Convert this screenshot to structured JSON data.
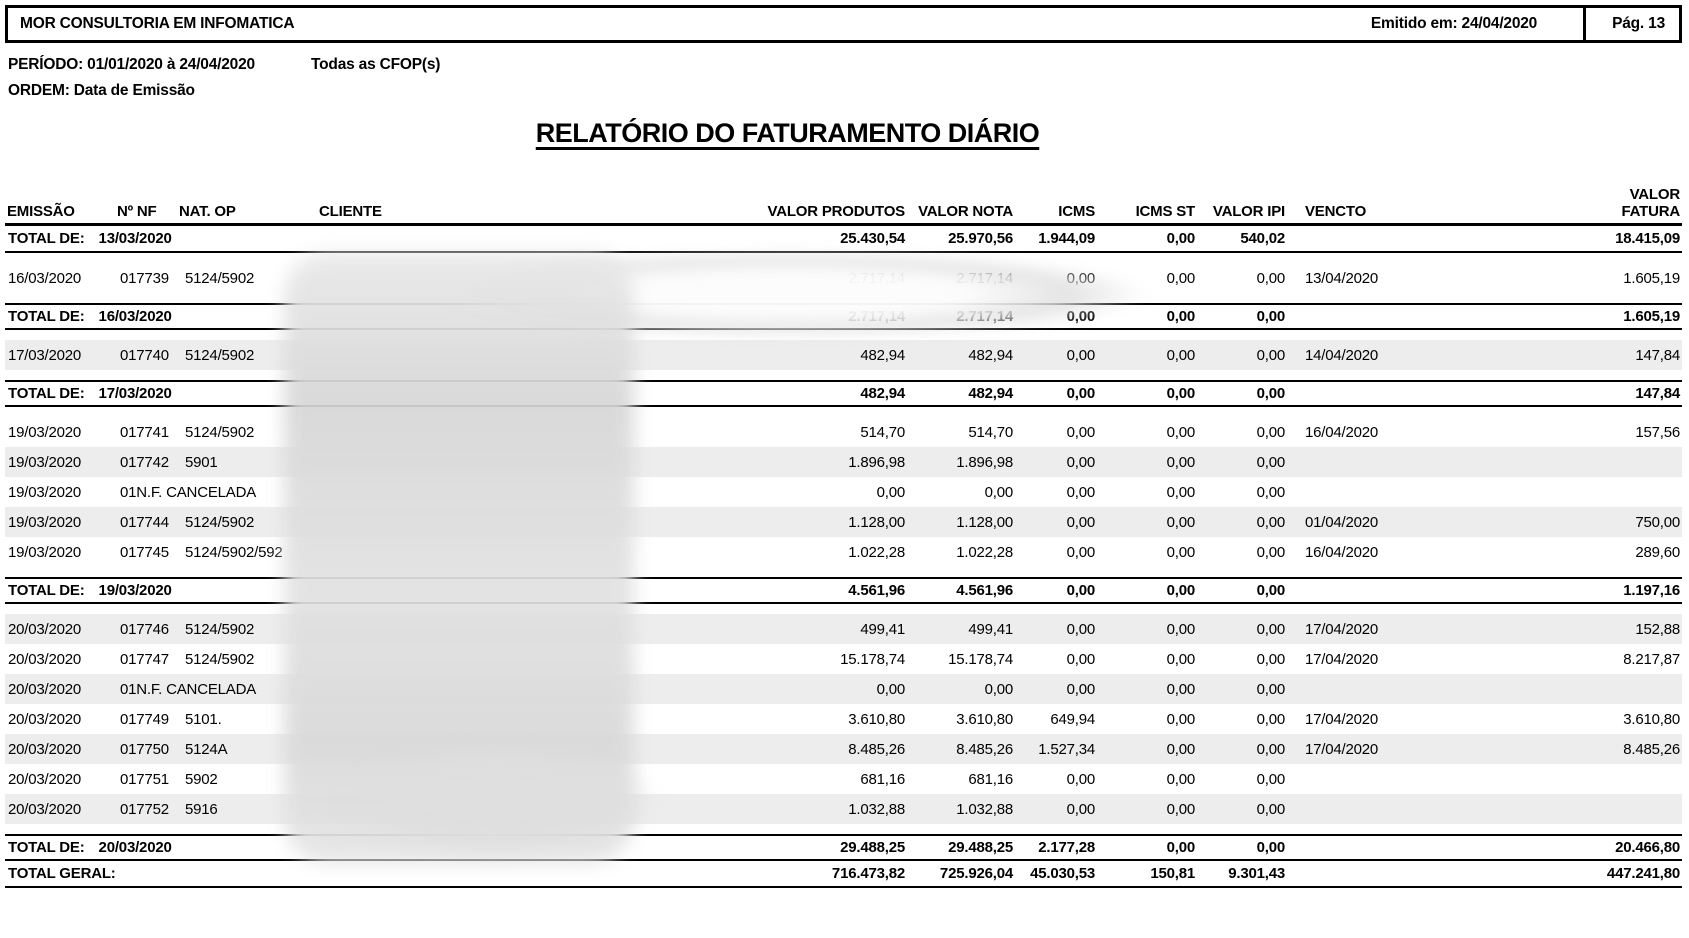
{
  "report": {
    "company": "MOR CONSULTORIA EM INFOMATICA",
    "emitted": "Emitido em: 24/04/2020",
    "page": "Pág. 13",
    "period": "PERÍODO: 01/01/2020 à 24/04/2020",
    "cfop": "Todas as CFOP(s)",
    "order": "ORDEM: Data de Emissão",
    "title": "RELATÓRIO DO FATURAMENTO DIÁRIO"
  },
  "colors": {
    "shade": "#ededed",
    "line": "#000000"
  },
  "table": {
    "columns": [
      "EMISSÃO",
      "Nº NF",
      "NAT. OP",
      "CLIENTE",
      "VALOR PRODUTOS",
      "VALOR NOTA",
      "ICMS",
      "ICMS ST",
      "VALOR IPI",
      "VENCTO",
      "VALOR\nFATURA"
    ],
    "rows": [
      {
        "type": "total",
        "label": "TOTAL DE:",
        "date": "13/03/2020",
        "valor_produtos": "25.430,54",
        "valor_nota": "25.970,56",
        "icms": "1.944,09",
        "icms_st": "0,00",
        "valor_ipi": "540,02",
        "vencto": "",
        "valor_fatura": "18.415,09"
      },
      {
        "type": "data",
        "emissao": "16/03/2020",
        "nf": "017739",
        "nat_op": "5124/5902",
        "cliente_redacted": true,
        "valor_produtos": "2.717,14",
        "valor_nota": "2.717,14",
        "icms": "0,00",
        "icms_st": "0,00",
        "valor_ipi": "0,00",
        "vencto": "13/04/2020",
        "valor_fatura": "1.605,19"
      },
      {
        "type": "total",
        "label": "TOTAL DE:",
        "date": "16/03/2020",
        "valor_produtos": "2.717,14",
        "valor_nota": "2.717,14",
        "icms": "0,00",
        "icms_st": "0,00",
        "valor_ipi": "0,00",
        "vencto": "",
        "valor_fatura": "1.605,19"
      },
      {
        "type": "data",
        "emissao": "17/03/2020",
        "nf": "017740",
        "nat_op": "5124/5902",
        "cliente_redacted": true,
        "valor_produtos": "482,94",
        "valor_nota": "482,94",
        "icms": "0,00",
        "icms_st": "0,00",
        "valor_ipi": "0,00",
        "vencto": "14/04/2020",
        "valor_fatura": "147,84"
      },
      {
        "type": "total",
        "label": "TOTAL DE:",
        "date": "17/03/2020",
        "valor_produtos": "482,94",
        "valor_nota": "482,94",
        "icms": "0,00",
        "icms_st": "0,00",
        "valor_ipi": "0,00",
        "vencto": "",
        "valor_fatura": "147,84"
      },
      {
        "type": "data",
        "emissao": "19/03/2020",
        "nf": "017741",
        "nat_op": "5124/5902",
        "cliente_redacted": true,
        "valor_produtos": "514,70",
        "valor_nota": "514,70",
        "icms": "0,00",
        "icms_st": "0,00",
        "valor_ipi": "0,00",
        "vencto": "16/04/2020",
        "valor_fatura": "157,56"
      },
      {
        "type": "data",
        "emissao": "19/03/2020",
        "nf": "017742",
        "nat_op": "5901",
        "cliente_redacted": true,
        "valor_produtos": "1.896,98",
        "valor_nota": "1.896,98",
        "icms": "0,00",
        "icms_st": "0,00",
        "valor_ipi": "0,00",
        "vencto": "",
        "valor_fatura": ""
      },
      {
        "type": "data",
        "emissao": "19/03/2020",
        "nf": "01",
        "nat_op": "N.F. CANCELADA",
        "merged": true,
        "cliente_redacted": true,
        "valor_produtos": "0,00",
        "valor_nota": "0,00",
        "icms": "0,00",
        "icms_st": "0,00",
        "valor_ipi": "0,00",
        "vencto": "",
        "valor_fatura": ""
      },
      {
        "type": "data",
        "emissao": "19/03/2020",
        "nf": "017744",
        "nat_op": "5124/5902",
        "cliente_redacted": true,
        "valor_produtos": "1.128,00",
        "valor_nota": "1.128,00",
        "icms": "0,00",
        "icms_st": "0,00",
        "valor_ipi": "0,00",
        "vencto": "01/04/2020",
        "valor_fatura": "750,00"
      },
      {
        "type": "data",
        "emissao": "19/03/2020",
        "nf": "017745",
        "nat_op": "5124/5902/592",
        "cliente_redacted": true,
        "valor_produtos": "1.022,28",
        "valor_nota": "1.022,28",
        "icms": "0,00",
        "icms_st": "0,00",
        "valor_ipi": "0,00",
        "vencto": "16/04/2020",
        "valor_fatura": "289,60"
      },
      {
        "type": "total",
        "label": "TOTAL DE:",
        "date": "19/03/2020",
        "valor_produtos": "4.561,96",
        "valor_nota": "4.561,96",
        "icms": "0,00",
        "icms_st": "0,00",
        "valor_ipi": "0,00",
        "vencto": "",
        "valor_fatura": "1.197,16"
      },
      {
        "type": "data",
        "emissao": "20/03/2020",
        "nf": "017746",
        "nat_op": "5124/5902",
        "cliente_redacted": true,
        "valor_produtos": "499,41",
        "valor_nota": "499,41",
        "icms": "0,00",
        "icms_st": "0,00",
        "valor_ipi": "0,00",
        "vencto": "17/04/2020",
        "valor_fatura": "152,88"
      },
      {
        "type": "data",
        "emissao": "20/03/2020",
        "nf": "017747",
        "nat_op": "5124/5902",
        "cliente_redacted": true,
        "valor_produtos": "15.178,74",
        "valor_nota": "15.178,74",
        "icms": "0,00",
        "icms_st": "0,00",
        "valor_ipi": "0,00",
        "vencto": "17/04/2020",
        "valor_fatura": "8.217,87"
      },
      {
        "type": "data",
        "emissao": "20/03/2020",
        "nf": "01",
        "nat_op": "N.F. CANCELADA",
        "merged": true,
        "cliente_redacted": true,
        "valor_produtos": "0,00",
        "valor_nota": "0,00",
        "icms": "0,00",
        "icms_st": "0,00",
        "valor_ipi": "0,00",
        "vencto": "",
        "valor_fatura": ""
      },
      {
        "type": "data",
        "emissao": "20/03/2020",
        "nf": "017749",
        "nat_op": "5101.",
        "cliente_redacted": true,
        "valor_produtos": "3.610,80",
        "valor_nota": "3.610,80",
        "icms": "649,94",
        "icms_st": "0,00",
        "valor_ipi": "0,00",
        "vencto": "17/04/2020",
        "valor_fatura": "3.610,80"
      },
      {
        "type": "data",
        "emissao": "20/03/2020",
        "nf": "017750",
        "nat_op": "5124A",
        "cliente_redacted": true,
        "valor_produtos": "8.485,26",
        "valor_nota": "8.485,26",
        "icms": "1.527,34",
        "icms_st": "0,00",
        "valor_ipi": "0,00",
        "vencto": "17/04/2020",
        "valor_fatura": "8.485,26"
      },
      {
        "type": "data",
        "emissao": "20/03/2020",
        "nf": "017751",
        "nat_op": "5902",
        "cliente_redacted": true,
        "valor_produtos": "681,16",
        "valor_nota": "681,16",
        "icms": "0,00",
        "icms_st": "0,00",
        "valor_ipi": "0,00",
        "vencto": "",
        "valor_fatura": ""
      },
      {
        "type": "data",
        "emissao": "20/03/2020",
        "nf": "017752",
        "nat_op": "5916",
        "cliente_redacted": true,
        "valor_produtos": "1.032,88",
        "valor_nota": "1.032,88",
        "icms": "0,00",
        "icms_st": "0,00",
        "valor_ipi": "0,00",
        "vencto": "",
        "valor_fatura": ""
      },
      {
        "type": "total",
        "label": "TOTAL DE:",
        "date": "20/03/2020",
        "valor_produtos": "29.488,25",
        "valor_nota": "29.488,25",
        "icms": "2.177,28",
        "icms_st": "0,00",
        "valor_ipi": "0,00",
        "vencto": "",
        "valor_fatura": "20.466,80"
      },
      {
        "type": "grand",
        "label": "TOTAL GERAL:",
        "valor_produtos": "716.473,82",
        "valor_nota": "725.926,04",
        "icms": "45.030,53",
        "icms_st": "150,81",
        "valor_ipi": "9.301,43",
        "vencto": "",
        "valor_fatura": "447.241,80"
      }
    ]
  }
}
